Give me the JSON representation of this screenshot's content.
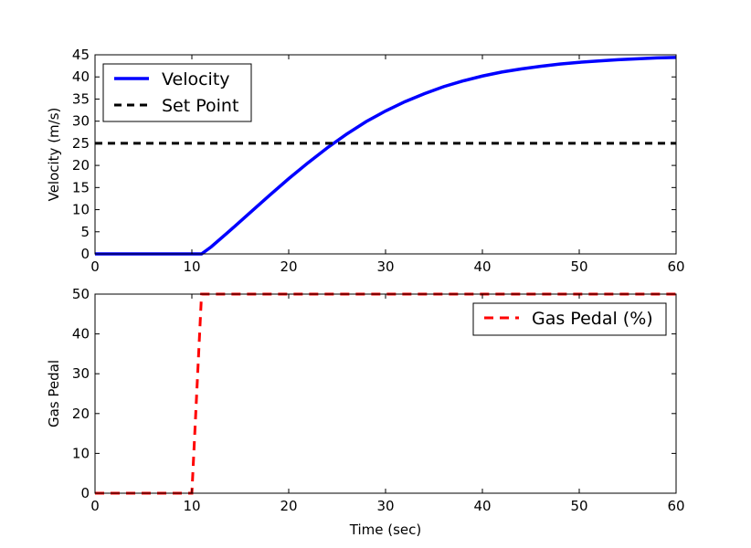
{
  "chart_data": [
    {
      "type": "line",
      "title": "",
      "xlabel": "",
      "ylabel": "Velocity (m/s)",
      "xlim": [
        0,
        60
      ],
      "ylim": [
        0,
        45
      ],
      "xticks": [
        0,
        10,
        20,
        30,
        40,
        50,
        60
      ],
      "yticks": [
        0,
        5,
        10,
        15,
        20,
        25,
        30,
        35,
        40,
        45
      ],
      "grid": false,
      "legend_position": "upper-left",
      "series": [
        {
          "name": "Velocity",
          "color": "#0000ff",
          "style": "solid",
          "x": [
            0,
            5,
            10,
            11,
            12,
            14,
            16,
            18,
            20,
            22,
            24,
            26,
            28,
            30,
            32,
            34,
            36,
            38,
            40,
            42,
            44,
            46,
            48,
            50,
            52,
            54,
            56,
            58,
            60
          ],
          "y": [
            0,
            0,
            0,
            0,
            1.6,
            5.4,
            9.3,
            13.2,
            17.0,
            20.6,
            24.0,
            27.1,
            29.9,
            32.3,
            34.4,
            36.2,
            37.8,
            39.1,
            40.2,
            41.1,
            41.8,
            42.4,
            42.9,
            43.3,
            43.6,
            43.9,
            44.1,
            44.3,
            44.4
          ]
        },
        {
          "name": "Set Point",
          "color": "#000000",
          "style": "dashed",
          "x": [
            0,
            60
          ],
          "y": [
            25,
            25
          ]
        }
      ]
    },
    {
      "type": "line",
      "title": "",
      "xlabel": "Time (sec)",
      "ylabel": "Gas Pedal",
      "xlim": [
        0,
        60
      ],
      "ylim": [
        0,
        50
      ],
      "xticks": [
        0,
        10,
        20,
        30,
        40,
        50,
        60
      ],
      "yticks": [
        0,
        10,
        20,
        30,
        40,
        50
      ],
      "grid": false,
      "legend_position": "upper-right",
      "series": [
        {
          "name": "Gas Pedal (%)",
          "color": "#ff0000",
          "style": "dashed",
          "x": [
            0,
            10,
            11,
            60
          ],
          "y": [
            0,
            0,
            50,
            50
          ]
        }
      ]
    }
  ]
}
